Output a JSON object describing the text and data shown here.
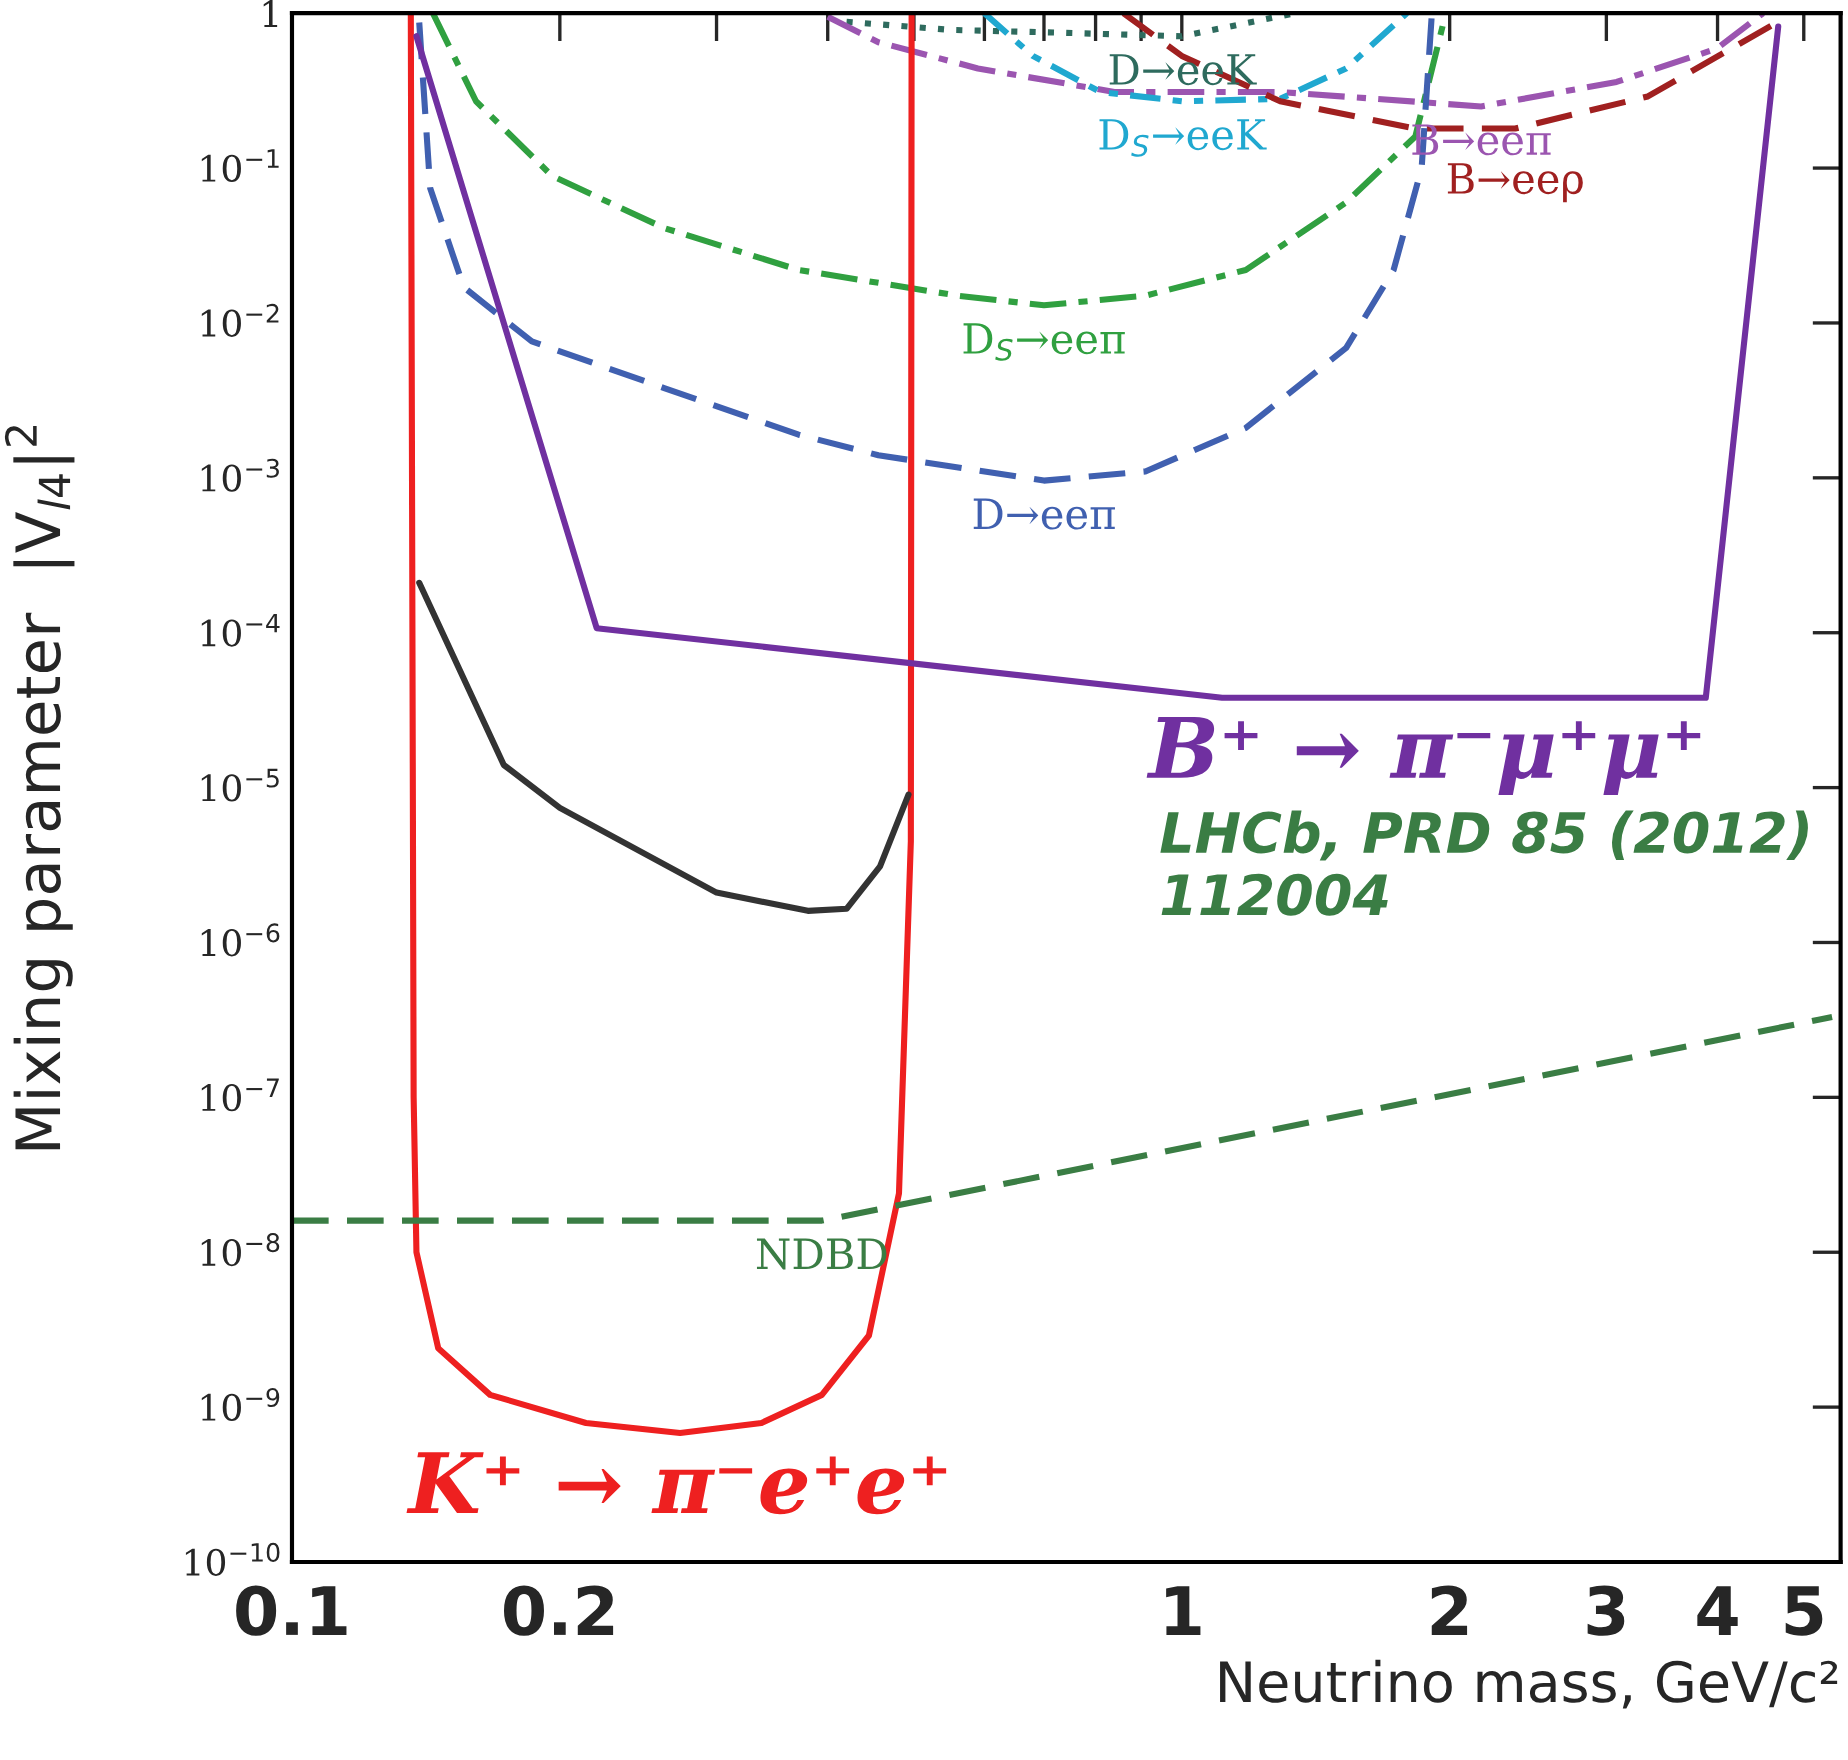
{
  "chart_data": {
    "type": "line",
    "xlabel": "Neutrino mass, GeV/c²",
    "ylabel": "Mixing parameter  |V$_{l4}$|$^{2}$",
    "log": "xy",
    "xlim": [
      0.1,
      5.5
    ],
    "xticks": [
      0.1,
      0.2,
      {
        "value": 0.3,
        "label": null
      },
      {
        "value": 0.4,
        "label": null
      },
      {
        "value": 0.5,
        "label": null
      },
      {
        "value": 0.6,
        "label": null
      },
      {
        "value": 0.7,
        "label": null
      },
      {
        "value": 0.8,
        "label": null
      },
      {
        "value": 0.9,
        "label": null
      },
      1,
      2,
      3,
      4,
      5
    ],
    "ylim": [
      1e-10,
      1
    ],
    "yticks": [
      {
        "value": 1e-10,
        "label": "10$^{−10}$"
      },
      {
        "value": 1e-09,
        "label": "10$^{−9}$"
      },
      {
        "value": 1e-08,
        "label": "10$^{−8}$"
      },
      {
        "value": 1e-07,
        "label": "10$^{−7}$"
      },
      {
        "value": 1e-06,
        "label": "10$^{−6}$"
      },
      {
        "value": 1e-05,
        "label": "10$^{−5}$"
      },
      {
        "value": 0.0001,
        "label": "10$^{−4}$"
      },
      {
        "value": 0.001,
        "label": "10$^{−3}$"
      },
      {
        "value": 0.01,
        "label": "10$^{−2}$"
      },
      {
        "value": 0.1,
        "label": "10$^{−1}$"
      },
      1
    ],
    "grid": false,
    "legend": false,
    "marker": "none",
    "annotations": [
      "LHCb, PRD 85 (2012) 112004"
    ],
    "series": [
      {
        "name": "D→eeK",
        "color": "#2e6b5e",
        "line_style": "dotted",
        "x": [
          0.42,
          0.55,
          0.72,
          1.0,
          1.34
        ],
        "values": [
          0.88,
          0.78,
          0.75,
          0.71,
          1.0
        ]
      },
      {
        "name": "B→eeπ",
        "color": "#9b55b0",
        "line_style": "dashdot",
        "x": [
          0.4,
          0.456,
          0.59,
          0.84,
          1.29,
          2.17,
          3.08,
          3.99,
          4.5
        ],
        "values": [
          0.95,
          0.65,
          0.44,
          0.31,
          0.31,
          0.25,
          0.36,
          0.59,
          1.0
        ]
      },
      {
        "name": "D$_{S}$→eeK",
        "color": "#20a8d0",
        "line_style": "dashdotdot",
        "x": [
          0.6,
          0.68,
          0.81,
          1.0,
          1.29,
          1.53,
          1.79
        ],
        "values": [
          1.0,
          0.53,
          0.31,
          0.27,
          0.28,
          0.44,
          1.0
        ]
      },
      {
        "name": "B→eeρ",
        "color": "#a02020",
        "line_style": "dashed",
        "x": [
          0.86,
          1.0,
          1.29,
          1.83,
          2.37,
          3.34,
          4.66
        ],
        "values": [
          1.0,
          0.53,
          0.27,
          0.18,
          0.18,
          0.29,
          0.87
        ]
      },
      {
        "name": "D$_{S}$→eeπ",
        "color": "#30a040",
        "line_style": "dashdot",
        "x": [
          0.144,
          0.161,
          0.196,
          0.262,
          0.371,
          0.56,
          0.7,
          0.91,
          1.18,
          1.53,
          1.83,
          1.98
        ],
        "values": [
          1.0,
          0.27,
          0.089,
          0.041,
          0.022,
          0.015,
          0.013,
          0.015,
          0.022,
          0.06,
          0.16,
          1.0
        ]
      },
      {
        "name": "D→eeπ",
        "color": "#4060b0",
        "line_style": "dashed",
        "x": [
          0.139,
          0.143,
          0.156,
          0.186,
          0.262,
          0.371,
          0.456,
          0.7,
          0.91,
          1.18,
          1.53,
          1.73,
          1.86,
          1.91
        ],
        "values": [
          0.87,
          0.074,
          0.017,
          0.0076,
          0.0038,
          0.0019,
          0.0014,
          0.00096,
          0.0011,
          0.0021,
          0.0069,
          0.022,
          0.1,
          1.0
        ]
      },
      {
        "name": "K⁺ → π⁻e⁺e⁺",
        "color": "#ee2020",
        "line_style": "solid",
        "x": [
          0.136,
          0.137,
          0.138,
          0.146,
          0.167,
          0.214,
          0.273,
          0.337,
          0.394,
          0.445,
          0.481,
          0.496,
          0.497
        ],
        "values": [
          1.0,
          1e-07,
          1e-08,
          2.4e-09,
          1.2e-09,
          7.9e-10,
          6.8e-10,
          7.9e-10,
          1.2e-09,
          2.9e-09,
          2.4e-08,
          4.5e-06,
          1.0
        ]
      },
      {
        "name": "B⁺ → π⁻μ⁺μ⁺",
        "color": "#7030a0",
        "line_style": "solid",
        "x": [
          0.138,
          0.22,
          1.11,
          3.88,
          4.68
        ],
        "values": [
          0.71,
          0.000107,
          3.8e-05,
          3.8e-05,
          0.82
        ]
      },
      {
        "name": "NDBD",
        "color": "#3a7d44",
        "line_style": "dashed",
        "x": [
          0.1,
          0.394,
          5.38
        ],
        "values": [
          1.6e-08,
          1.6e-08,
          3.3e-07
        ]
      },
      {
        "color": "#333333",
        "line_style": "solid",
        "x": [
          0.139,
          0.173,
          0.2,
          0.3,
          0.38,
          0.42,
          0.458,
          0.493
        ],
        "values": [
          0.00021,
          1.4e-05,
          7.4e-06,
          2.1e-06,
          1.6e-06,
          1.65e-06,
          3.1e-06,
          9e-06
        ]
      }
    ]
  }
}
